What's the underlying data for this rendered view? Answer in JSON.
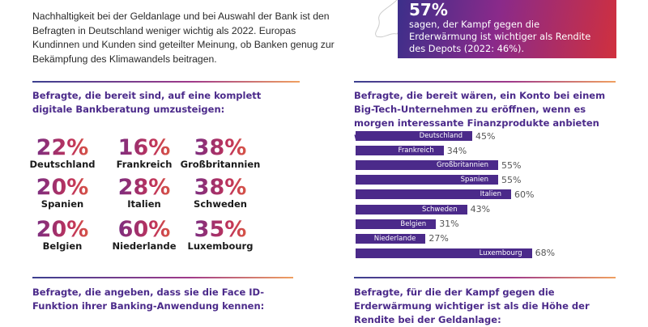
{
  "intro": "Nachhaltigkeit bei der Geldanlage und bei Auswahl der Bank ist den Befragten in Deutschland weniger wichtig als 2022. Europas Kundinnen und Kunden sind geteilter Meinung, ob Banken genug zur Bekämpfung des Klimawandels beitragen.",
  "highlight": {
    "value": "57%",
    "text": "sagen, der Kampf gegen die Erderwärmung ist wichtiger als Rendite des Depots (2022: 46%)."
  },
  "digital": {
    "heading": "Befragte, die bereit sind, auf eine komplett digitale Bankberatung umzusteigen:",
    "stats": [
      {
        "value": "22%",
        "country": "Deutschland"
      },
      {
        "value": "16%",
        "country": "Frankreich"
      },
      {
        "value": "38%",
        "country": "Großbritannien"
      },
      {
        "value": "20%",
        "country": "Spanien"
      },
      {
        "value": "28%",
        "country": "Italien"
      },
      {
        "value": "38%",
        "country": "Schweden"
      },
      {
        "value": "20%",
        "country": "Belgien"
      },
      {
        "value": "60%",
        "country": "Niederlande"
      },
      {
        "value": "35%",
        "country": "Luxembourg"
      }
    ]
  },
  "bigtech": {
    "heading": "Befragte, die bereit wären, ein Konto bei einem Big-Tech-Unternehmen zu eröffnen, wenn es morgen interessante Finanzprodukte anbieten würde:"
  },
  "faceid": {
    "heading": "Befragte, die angeben, dass sie die Face ID-Funktion ihrer Banking-Anwendung kennen:"
  },
  "climate": {
    "heading": "Befragte, für die der Kampf gegen die Erderwärmung wichtiger ist als die Höhe der Rendite bei der Geldanlage:"
  },
  "chart_data": {
    "type": "bar",
    "orientation": "horizontal",
    "bar_color": "#4b2a8a",
    "categories": [
      "Deutschland",
      "Frankreich",
      "Großbritannien",
      "Spanien",
      "Italien",
      "Schweden",
      "Belgien",
      "Niederlande",
      "Luxembourg"
    ],
    "values": [
      45,
      34,
      55,
      55,
      60,
      43,
      31,
      27,
      68
    ],
    "value_labels": [
      "45%",
      "34%",
      "55%",
      "55%",
      "60%",
      "43%",
      "31%",
      "27%",
      "68%"
    ]
  }
}
